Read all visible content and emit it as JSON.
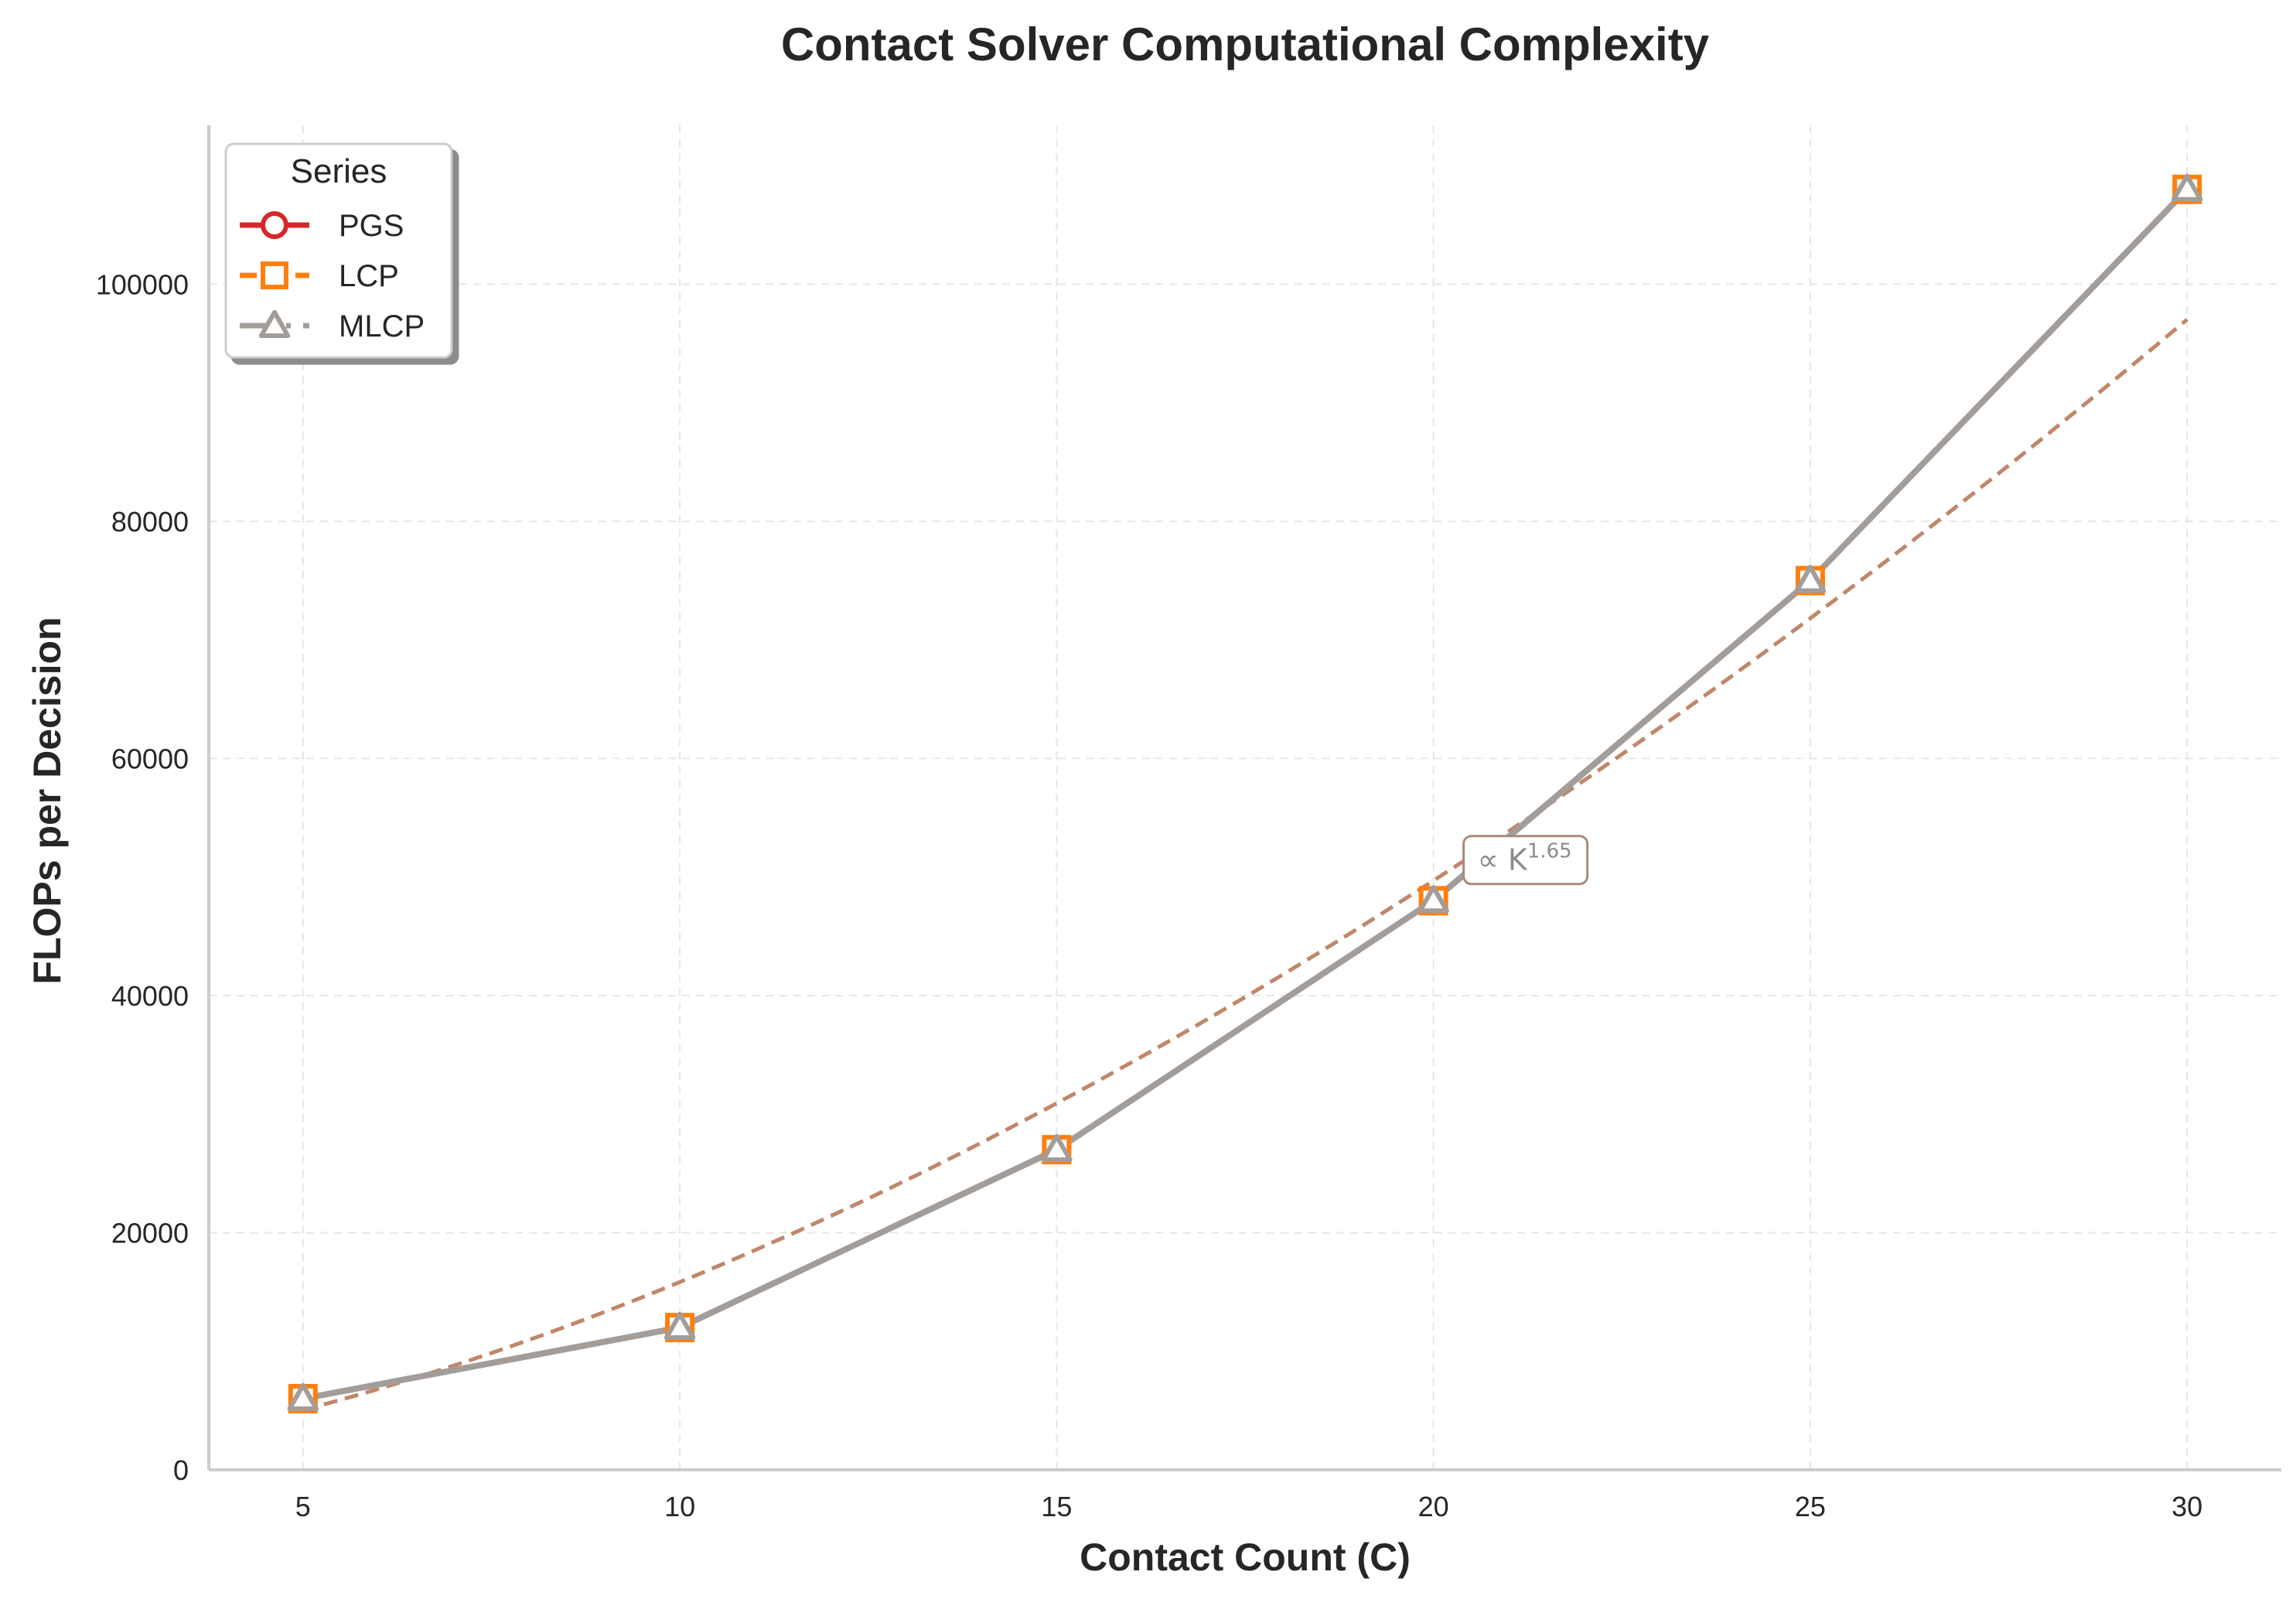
{
  "chart_data": {
    "type": "line",
    "title": "Contact Solver Computational Complexity",
    "xlabel": "Contact Count (C)",
    "ylabel": "FLOPs per Decision",
    "x": [
      5,
      10,
      15,
      20,
      25,
      30
    ],
    "xlim": [
      3.75,
      31.25
    ],
    "ylim": [
      0,
      113400
    ],
    "xticks": [
      5,
      10,
      15,
      20,
      25,
      30
    ],
    "yticks": [
      0,
      20000,
      40000,
      60000,
      80000,
      100000
    ],
    "grid": true,
    "series": [
      {
        "name": "PGS",
        "values": [
          6000,
          12000,
          27000,
          48000,
          75000,
          108000
        ],
        "color": "#d62728",
        "marker": "circle",
        "linestyle": "solid"
      },
      {
        "name": "LCP",
        "values": [
          6000,
          12000,
          27000,
          48000,
          75000,
          108000
        ],
        "color": "#ff7f0e",
        "marker": "square",
        "linestyle": "dashed"
      },
      {
        "name": "MLCP",
        "values": [
          6000,
          12000,
          27000,
          48000,
          75000,
          108000
        ],
        "color": "#a39d9a",
        "marker": "triangle",
        "linestyle": "dotted"
      }
    ],
    "fit": {
      "exponent": 1.65,
      "coefficient": 354.5,
      "x_range": [
        5,
        30
      ],
      "color": "#c0876a",
      "linestyle": "dashed"
    },
    "annotation": {
      "text": "∝ K",
      "superscript": "1.65",
      "x": 20.4,
      "y": 51500
    },
    "legend": {
      "title": "Series",
      "position": "top-left"
    }
  }
}
